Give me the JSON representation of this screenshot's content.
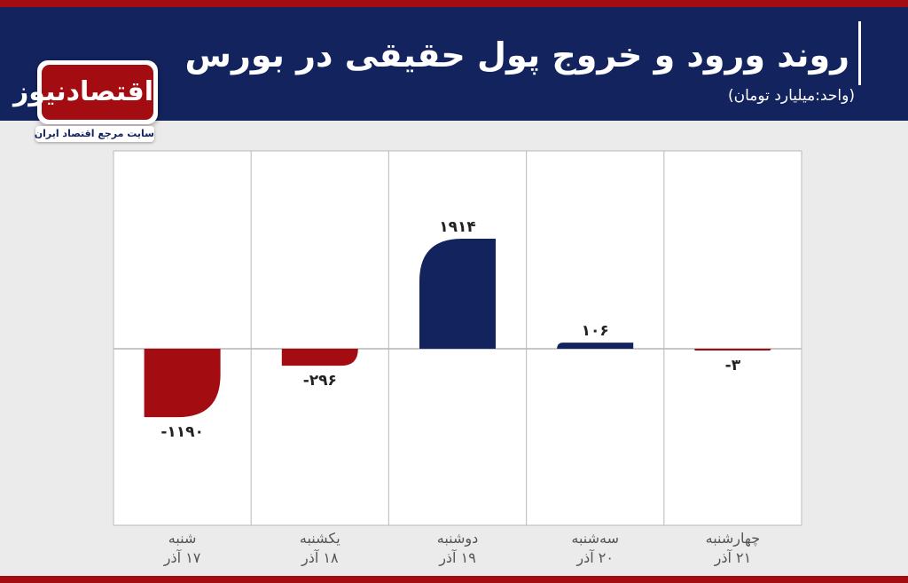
{
  "header": {
    "title": "روند ورود و خروج پول حقیقی در بورس",
    "unit": "(واحد:میلیارد تومان)"
  },
  "logo": {
    "name": "اقتصادنیوز",
    "tagline": "سایت مرجع اقتصاد ایران"
  },
  "colors": {
    "positive": "#13235e",
    "negative": "#a30d12",
    "header": "#13235e",
    "accent": "#a30d12"
  },
  "chart_data": {
    "type": "bar",
    "title": "روند ورود و خروج پول حقیقی در بورس",
    "ylabel": "(واحد:میلیارد تومان)",
    "grid": true,
    "categories": [
      {
        "day": "شنبه",
        "date": "۱۷ آذر"
      },
      {
        "day": "یکشنبه",
        "date": "۱۸ آذر"
      },
      {
        "day": "دوشنبه",
        "date": "۱۹ آذر"
      },
      {
        "day": "سه‌شنبه",
        "date": "۲۰ آذر"
      },
      {
        "day": "چهارشنبه",
        "date": "۲۱ آذر"
      }
    ],
    "values": [
      -1190,
      -296,
      1914,
      106,
      -3
    ],
    "value_labels": [
      "-۱۱۹۰",
      "-۲۹۶",
      "۱۹۱۴",
      "۱۰۶",
      "-۳"
    ],
    "ylim": [
      -3400,
      3800
    ]
  }
}
